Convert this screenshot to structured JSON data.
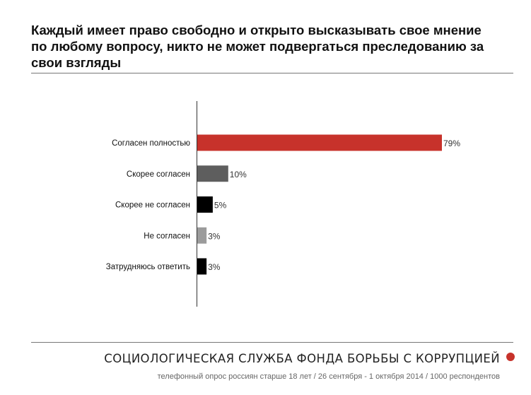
{
  "chart_data": {
    "type": "bar",
    "orientation": "horizontal",
    "title": "Каждый имеет право свободно и открыто высказывать свое мнение по любому вопросу, никто не может подвергаться преследованию за свои взгляды",
    "categories": [
      "Согласен полностью",
      "Скорее согласен",
      "Скорее не согласен",
      "Не согласен",
      "Затрудняюсь ответить"
    ],
    "values": [
      79,
      10,
      5,
      3,
      3
    ],
    "value_labels": [
      "79%",
      "10%",
      "5%",
      "3%",
      "3%"
    ],
    "colors": [
      "#c7322b",
      "#5e5e5e",
      "#000000",
      "#9b9b9b",
      "#000000"
    ],
    "xlim": [
      0,
      100
    ],
    "grid": false,
    "legend": "none"
  },
  "footer": {
    "organization": "СОЦИОЛОГИЧЕСКАЯ СЛУЖБА ФОНДА БОРЬБЫ С КОРРУПЦИЕЙ",
    "survey_info": "телефонный опрос россиян старше 18 лет / 26 сентября - 1 октября 2014 / 1000 респондентов",
    "accent_color": "#c7322b"
  }
}
